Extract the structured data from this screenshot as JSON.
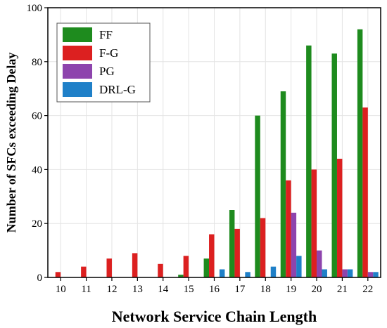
{
  "chart_data": {
    "type": "bar",
    "title": "",
    "xlabel": "Network Service Chain Length",
    "ylabel": "Number of SFCs exceeding Delay",
    "categories": [
      "10",
      "11",
      "12",
      "13",
      "14",
      "15",
      "16",
      "17",
      "18",
      "19",
      "20",
      "21",
      "22"
    ],
    "ylim": [
      0,
      100
    ],
    "yticks": [
      0,
      20,
      40,
      60,
      80,
      100
    ],
    "grid": true,
    "legend_position": "top-left",
    "series": [
      {
        "name": "FF",
        "color": "#1e8b1e",
        "values": [
          0,
          0,
          0,
          0,
          0,
          1,
          7,
          25,
          60,
          69,
          86,
          83,
          92
        ]
      },
      {
        "name": "F-G",
        "color": "#dc2020",
        "values": [
          2,
          4,
          7,
          9,
          5,
          8,
          16,
          18,
          22,
          36,
          40,
          44,
          63
        ]
      },
      {
        "name": "PG",
        "color": "#8e44ad",
        "values": [
          0,
          0,
          0,
          0,
          0,
          0,
          0,
          0,
          0,
          24,
          10,
          3,
          2
        ]
      },
      {
        "name": "DRL-G",
        "color": "#1f80c8",
        "values": [
          0,
          0,
          0,
          0,
          0,
          0,
          3,
          2,
          4,
          8,
          3,
          3,
          2
        ]
      }
    ]
  }
}
